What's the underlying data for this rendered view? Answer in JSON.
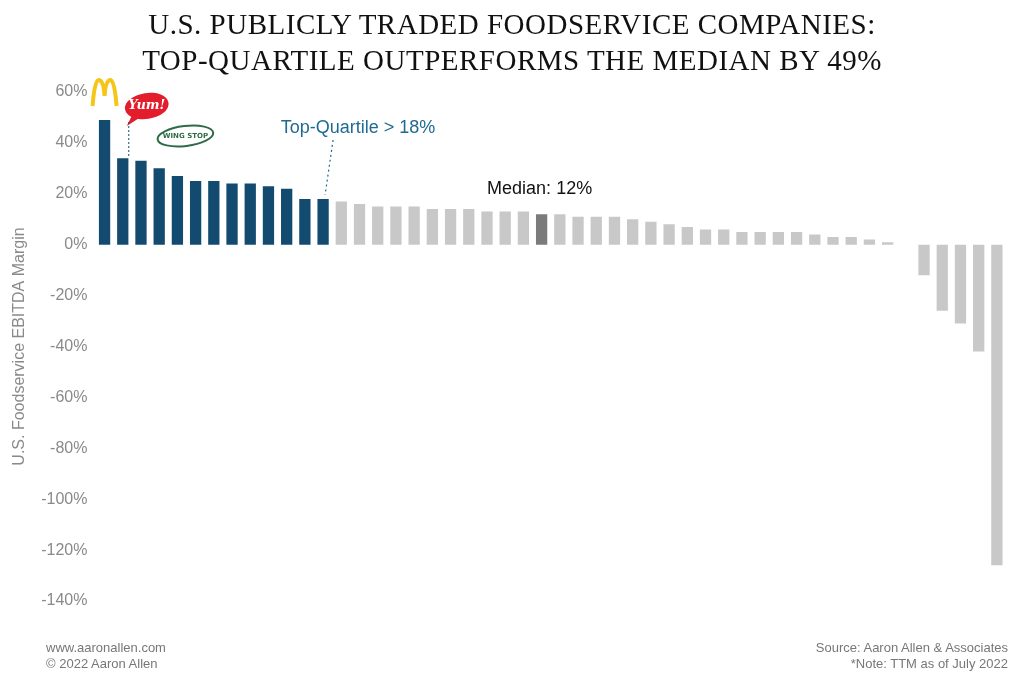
{
  "chart_data": {
    "type": "bar",
    "title": [
      "U.S. PUBLICLY TRADED FOODSERVICE COMPANIES:",
      "TOP-QUARTILE OUTPERFORMS THE MEDIAN BY 49%"
    ],
    "y_label": "U.S. Foodservice EBITDA Margin",
    "categories": [
      null,
      null,
      null,
      null,
      null,
      null,
      null,
      null,
      null,
      null,
      null,
      null,
      null,
      null,
      null,
      null,
      null,
      null,
      null,
      null,
      null,
      null,
      null,
      null,
      null,
      null,
      null,
      null,
      null,
      null,
      null,
      null,
      null,
      null,
      null,
      null,
      null,
      null,
      null,
      null,
      null,
      null,
      null,
      null,
      null,
      null,
      null,
      null,
      null,
      null
    ],
    "values": [
      49,
      34,
      33,
      30,
      27,
      25,
      25,
      24,
      24,
      23,
      22,
      18,
      18,
      17,
      16,
      15,
      15,
      15,
      14,
      14,
      14,
      13,
      13,
      13,
      12,
      12,
      11,
      11,
      11,
      10,
      9,
      8,
      7,
      6,
      6,
      5,
      5,
      5,
      5,
      4,
      3,
      3,
      2,
      1,
      0,
      -12,
      -26,
      -31,
      -42,
      -126
    ],
    "colors": [
      "#134b70",
      "#134b70",
      "#134b70",
      "#134b70",
      "#134b70",
      "#134b70",
      "#134b70",
      "#134b70",
      "#134b70",
      "#134b70",
      "#134b70",
      "#134b70",
      "#134b70",
      "#c8c8c8",
      "#c8c8c8",
      "#c8c8c8",
      "#c8c8c8",
      "#c8c8c8",
      "#c8c8c8",
      "#c8c8c8",
      "#c8c8c8",
      "#c8c8c8",
      "#c8c8c8",
      "#c8c8c8",
      "#7b7b7b",
      "#c8c8c8",
      "#c8c8c8",
      "#c8c8c8",
      "#c8c8c8",
      "#c8c8c8",
      "#c8c8c8",
      "#c8c8c8",
      "#c8c8c8",
      "#c8c8c8",
      "#c8c8c8",
      "#c8c8c8",
      "#c8c8c8",
      "#c8c8c8",
      "#c8c8c8",
      "#c8c8c8",
      "#c8c8c8",
      "#c8c8c8",
      "#c8c8c8",
      "#c8c8c8",
      "#c8c8c8",
      "#c8c8c8",
      "#c8c8c8",
      "#c8c8c8",
      "#c8c8c8",
      "#c8c8c8"
    ],
    "ylim": [
      -140,
      60
    ],
    "yticks": [
      {
        "value": -140,
        "label": "-140%"
      },
      {
        "value": -120,
        "label": "-120%"
      },
      {
        "value": -100,
        "label": "-100%"
      },
      {
        "value": -80,
        "label": "-80%"
      },
      {
        "value": -60,
        "label": "-60%"
      },
      {
        "value": -40,
        "label": "-40%"
      },
      {
        "value": -20,
        "label": "-20%"
      },
      {
        "value": 0,
        "label": "0%"
      },
      {
        "value": 20,
        "label": "20%"
      },
      {
        "value": 40,
        "label": "40%"
      },
      {
        "value": 60,
        "label": "60%"
      }
    ],
    "grid": false,
    "tick_labels": "y",
    "data_labels": false,
    "annotations": [
      "Top-Quartile > 18%",
      "Median: 12%"
    ],
    "logo_labels": [
      "Yum!",
      "WING STOP"
    ],
    "footer_left": [
      "www.aaronallen.com",
      "© 2022 Aaron Allen"
    ],
    "footer_right": [
      "Source: Aaron Allen & Associates",
      "*Note: TTM as of July 2022"
    ]
  }
}
